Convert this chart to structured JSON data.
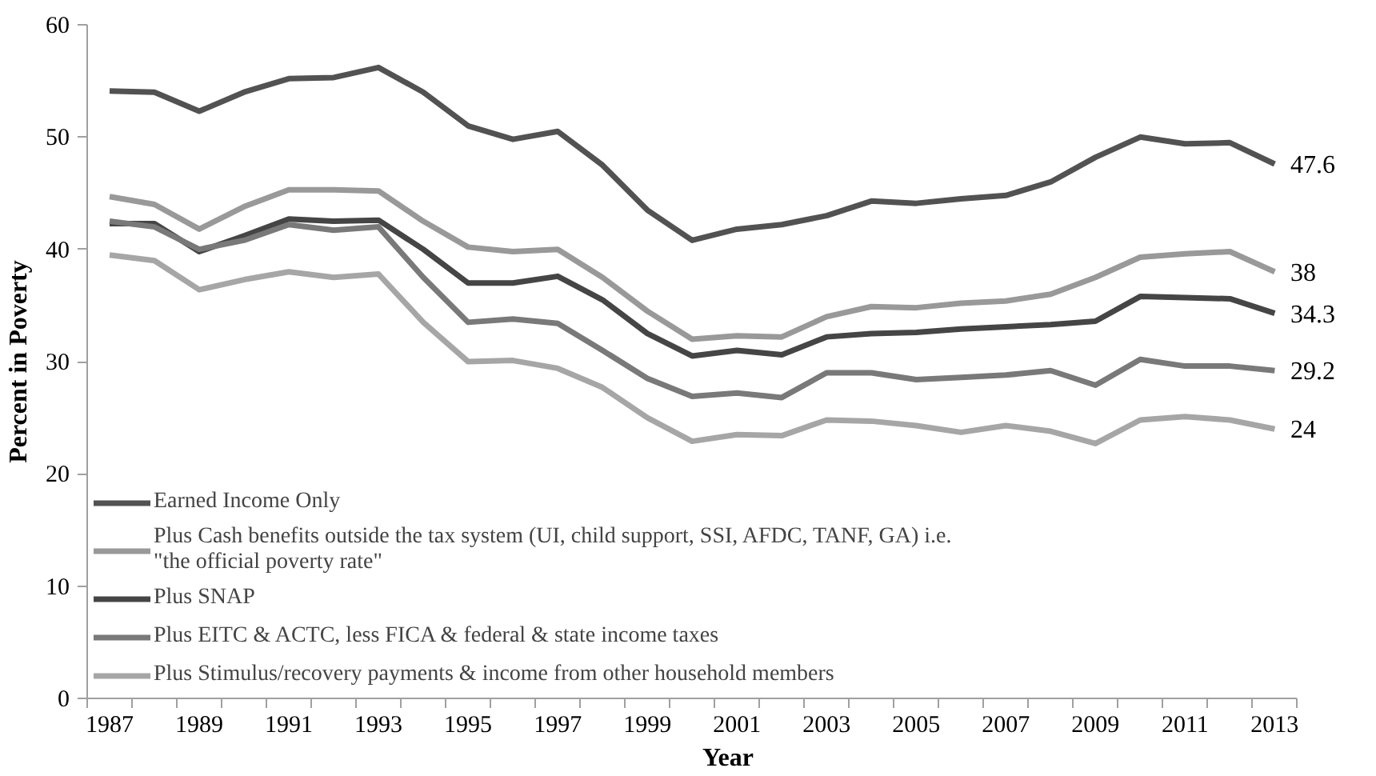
{
  "chart_data": {
    "type": "line",
    "xlabel": "Year",
    "ylabel": "Percent in Poverty",
    "categories": [
      "1987",
      null,
      "1989",
      null,
      "1991",
      null,
      "1993",
      null,
      "1995",
      null,
      "1997",
      null,
      "1999",
      null,
      "2001",
      null,
      "2003",
      null,
      "2005",
      null,
      "2007",
      null,
      "2009",
      null,
      "2011",
      null,
      "2013"
    ],
    "ylim": [
      0,
      60
    ],
    "yticks": [
      0,
      10,
      20,
      30,
      40,
      50,
      60
    ],
    "grid": false,
    "legend": "bottom left",
    "marker": "none",
    "line_style": "solid",
    "series": [
      {
        "name": "Earned Income Only",
        "color": "#525252",
        "values": [
          54.1,
          54,
          52.3,
          54,
          55.2,
          55.3,
          56.2,
          54,
          51,
          49.8,
          50.5,
          47.5,
          43.5,
          40.8,
          41.8,
          42.2,
          43,
          44.3,
          44.1,
          44.5,
          44.8,
          46,
          48.2,
          50,
          49.4,
          49.5,
          47.6
        ],
        "value_labels": [
          null,
          null,
          null,
          null,
          null,
          null,
          null,
          null,
          null,
          null,
          null,
          null,
          null,
          null,
          null,
          null,
          null,
          null,
          null,
          null,
          null,
          null,
          null,
          null,
          null,
          null,
          "47.6"
        ]
      },
      {
        "name": "Plus Cash benefits outside the tax system (UI, child support, SSI, AFDC, TANF, GA) i.e.\n\"the official poverty rate\"",
        "color": "#999999",
        "values": [
          44.7,
          44,
          41.8,
          43.8,
          45.3,
          45.3,
          45.2,
          42.5,
          40.2,
          39.8,
          40,
          37.5,
          34.5,
          32,
          32.3,
          32.2,
          34,
          34.9,
          34.8,
          35.2,
          35.4,
          36,
          37.5,
          39.3,
          39.6,
          39.8,
          38
        ],
        "value_labels": [
          null,
          null,
          null,
          null,
          null,
          null,
          null,
          null,
          null,
          null,
          null,
          null,
          null,
          null,
          null,
          null,
          null,
          null,
          null,
          null,
          null,
          null,
          null,
          null,
          null,
          null,
          "38"
        ]
      },
      {
        "name": "Plus SNAP",
        "color": "#454545",
        "values": [
          42.3,
          42.3,
          39.8,
          41.2,
          42.7,
          42.5,
          42.6,
          40,
          37,
          37,
          37.6,
          35.5,
          32.5,
          30.5,
          31,
          30.6,
          32.2,
          32.5,
          32.6,
          32.9,
          33.1,
          33.3,
          33.6,
          35.8,
          35.7,
          35.6,
          34.3
        ],
        "value_labels": [
          null,
          null,
          null,
          null,
          null,
          null,
          null,
          null,
          null,
          null,
          null,
          null,
          null,
          null,
          null,
          null,
          null,
          null,
          null,
          null,
          null,
          null,
          null,
          null,
          null,
          null,
          "34.3"
        ]
      },
      {
        "name": "Plus EITC & ACTC, less FICA & federal & state income taxes",
        "color": "#797979",
        "values": [
          42.5,
          42,
          40,
          40.8,
          42.2,
          41.7,
          42,
          37.5,
          33.5,
          33.8,
          33.4,
          31,
          28.5,
          26.9,
          27.2,
          26.8,
          29,
          29,
          28.4,
          28.6,
          28.8,
          29.2,
          27.9,
          30.2,
          29.6,
          29.6,
          29.2
        ],
        "value_labels": [
          null,
          null,
          null,
          null,
          null,
          null,
          null,
          null,
          null,
          null,
          null,
          null,
          null,
          null,
          null,
          null,
          null,
          null,
          null,
          null,
          null,
          null,
          null,
          null,
          null,
          null,
          "29.2"
        ]
      },
      {
        "name": "Plus Stimulus/recovery payments & income from other household members",
        "color": "#a6a6a6",
        "values": [
          39.5,
          39,
          36.4,
          37.3,
          38,
          37.5,
          37.8,
          33.5,
          30,
          30.1,
          29.4,
          27.7,
          25,
          22.9,
          23.5,
          23.4,
          24.8,
          24.7,
          24.3,
          23.7,
          24.3,
          23.8,
          22.7,
          24.8,
          25.1,
          24.8,
          24
        ],
        "value_labels": [
          null,
          null,
          null,
          null,
          null,
          null,
          null,
          null,
          null,
          null,
          null,
          null,
          null,
          null,
          null,
          null,
          null,
          null,
          null,
          null,
          null,
          null,
          null,
          null,
          null,
          null,
          "24"
        ]
      }
    ]
  }
}
